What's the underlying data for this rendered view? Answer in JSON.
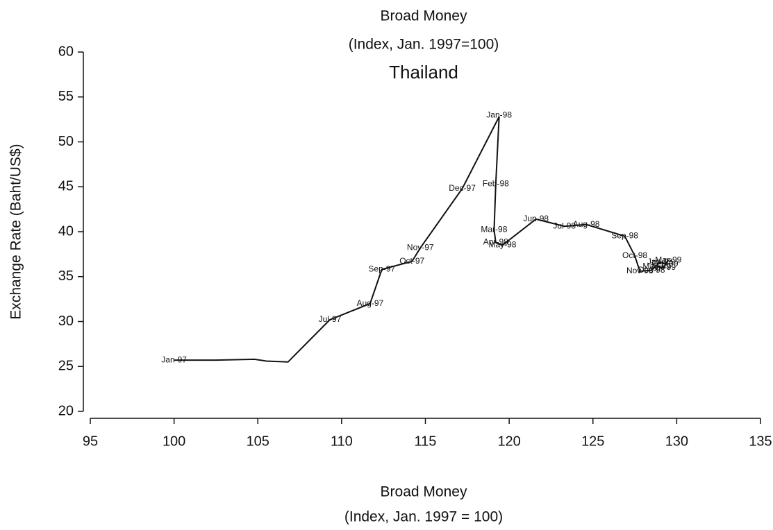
{
  "chart_data": {
    "type": "connected-scatter",
    "title_lines": [
      "Broad Money",
      "(Index, Jan. 1997=100)"
    ],
    "title": "Thailand",
    "y_label": "Exchange Rate (Baht/US$)",
    "x_label_lines": [
      "Broad Money",
      "(Index, Jan. 1997 = 100)"
    ],
    "x": [
      100,
      102.5,
      104.8,
      105.5,
      106.8,
      109.3,
      111.7,
      112.4,
      114.2,
      114.7,
      117.2,
      119.4,
      119.2,
      119.1,
      119.2,
      119.6,
      121.6,
      123.3,
      124.6,
      126.9,
      127.5,
      127.8,
      128.5,
      129.0,
      129.3,
      129.5,
      129.2,
      128.8
    ],
    "values": [
      25.7,
      25.7,
      25.8,
      25.6,
      25.5,
      30.2,
      32.0,
      35.8,
      36.7,
      38.2,
      44.8,
      52.8,
      45.3,
      40.2,
      38.8,
      38.5,
      41.4,
      40.6,
      40.8,
      39.5,
      37.3,
      35.6,
      35.7,
      36.6,
      36.4,
      36.8,
      36.0,
      36.1
    ],
    "point_labels": [
      "Jan-97",
      null,
      null,
      null,
      null,
      "Jul-97",
      "Aug-97",
      "Sep-97",
      "Oct-97",
      "Nov-97",
      "Dec-97",
      "Jan-98",
      "Feb-98",
      "Mar-98",
      "Apr-98",
      "May-98",
      "Jun-98",
      "Jul-98",
      "Aug-98",
      "Sep-98",
      "Oct-98",
      "Nov-98",
      "Dec-98",
      "Jan-99",
      "Feb-99",
      "Mar-99",
      "Apr-99",
      "May-99"
    ],
    "color": "#111111",
    "xlim": [
      95,
      135
    ],
    "xticks": [
      95,
      100,
      105,
      110,
      115,
      120,
      125,
      130,
      135
    ],
    "ylim": [
      20,
      60
    ],
    "yticks": [
      20,
      25,
      30,
      35,
      40,
      45,
      50,
      55,
      60
    ]
  }
}
